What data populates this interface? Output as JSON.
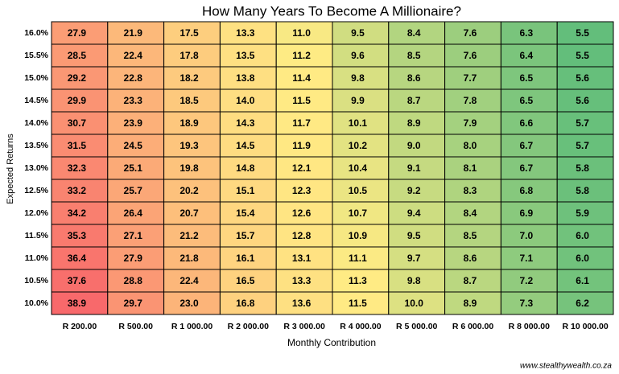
{
  "chart_data": {
    "type": "heatmap",
    "title": "How Many Years To Become A Millionaire?",
    "x_label": "Monthly Contribution",
    "y_label": "Expected Returns",
    "source": "www.stealthywealth.co.za",
    "color_scale": {
      "min": "#63be7b",
      "mid": "#ffeb84",
      "max": "#f8696b"
    },
    "rows": [
      "16.0%",
      "15.5%",
      "15.0%",
      "14.5%",
      "14.0%",
      "13.5%",
      "13.0%",
      "12.5%",
      "12.0%",
      "11.5%",
      "11.0%",
      "10.5%",
      "10.0%"
    ],
    "columns": [
      "R 200.00",
      "R 500.00",
      "R 1 000.00",
      "R 2 000.00",
      "R 3 000.00",
      "R 4 000.00",
      "R 5 000.00",
      "R 6 000.00",
      "R 8 000.00",
      "R 10 000.00"
    ],
    "values": [
      [
        27.9,
        21.9,
        17.5,
        13.3,
        11.0,
        9.5,
        8.4,
        7.6,
        6.3,
        5.5
      ],
      [
        28.5,
        22.4,
        17.8,
        13.5,
        11.2,
        9.6,
        8.5,
        7.6,
        6.4,
        5.5
      ],
      [
        29.2,
        22.8,
        18.2,
        13.8,
        11.4,
        9.8,
        8.6,
        7.7,
        6.5,
        5.6
      ],
      [
        29.9,
        23.3,
        18.5,
        14.0,
        11.5,
        9.9,
        8.7,
        7.8,
        6.5,
        5.6
      ],
      [
        30.7,
        23.9,
        18.9,
        14.3,
        11.7,
        10.1,
        8.9,
        7.9,
        6.6,
        5.7
      ],
      [
        31.5,
        24.5,
        19.3,
        14.5,
        11.9,
        10.2,
        9.0,
        8.0,
        6.7,
        5.7
      ],
      [
        32.3,
        25.1,
        19.8,
        14.8,
        12.1,
        10.4,
        9.1,
        8.1,
        6.7,
        5.8
      ],
      [
        33.2,
        25.7,
        20.2,
        15.1,
        12.3,
        10.5,
        9.2,
        8.3,
        6.8,
        5.8
      ],
      [
        34.2,
        26.4,
        20.7,
        15.4,
        12.6,
        10.7,
        9.4,
        8.4,
        6.9,
        5.9
      ],
      [
        35.3,
        27.1,
        21.2,
        15.7,
        12.8,
        10.9,
        9.5,
        8.5,
        7.0,
        6.0
      ],
      [
        36.4,
        27.9,
        21.8,
        16.1,
        13.1,
        11.1,
        9.7,
        8.6,
        7.1,
        6.0
      ],
      [
        37.6,
        28.8,
        22.4,
        16.5,
        13.3,
        11.3,
        9.8,
        8.7,
        7.2,
        6.1
      ],
      [
        38.9,
        29.7,
        23.0,
        16.8,
        13.6,
        11.5,
        10.0,
        8.9,
        7.3,
        6.2
      ]
    ],
    "value_labels": [
      [
        "27.9",
        "21.9",
        "17.5",
        "13.3",
        "11.0",
        "9.5",
        "8.4",
        "7.6",
        "6.3",
        "5.5"
      ],
      [
        "28.5",
        "22.4",
        "17.8",
        "13.5",
        "11.2",
        "9.6",
        "8.5",
        "7.6",
        "6.4",
        "5.5"
      ],
      [
        "29.2",
        "22.8",
        "18.2",
        "13.8",
        "11.4",
        "9.8",
        "8.6",
        "7.7",
        "6.5",
        "5.6"
      ],
      [
        "29.9",
        "23.3",
        "18.5",
        "14.0",
        "11.5",
        "9.9",
        "8.7",
        "7.8",
        "6.5",
        "5.6"
      ],
      [
        "30.7",
        "23.9",
        "18.9",
        "14.3",
        "11.7",
        "10.1",
        "8.9",
        "7.9",
        "6.6",
        "5.7"
      ],
      [
        "31.5",
        "24.5",
        "19.3",
        "14.5",
        "11.9",
        "10.2",
        "9.0",
        "8.0",
        "6.7",
        "5.7"
      ],
      [
        "32.3",
        "25.1",
        "19.8",
        "14.8",
        "12.1",
        "10.4",
        "9.1",
        "8.1",
        "6.7",
        "5.8"
      ],
      [
        "33.2",
        "25.7",
        "20.2",
        "15.1",
        "12.3",
        "10.5",
        "9.2",
        "8.3",
        "6.8",
        "5.8"
      ],
      [
        "34.2",
        "26.4",
        "20.7",
        "15.4",
        "12.6",
        "10.7",
        "9.4",
        "8.4",
        "6.9",
        "5.9"
      ],
      [
        "35.3",
        "27.1",
        "21.2",
        "15.7",
        "12.8",
        "10.9",
        "9.5",
        "8.5",
        "7.0",
        "6.0"
      ],
      [
        "36.4",
        "27.9",
        "21.8",
        "16.1",
        "13.1",
        "11.1",
        "9.7",
        "8.6",
        "7.1",
        "6.0"
      ],
      [
        "37.6",
        "28.8",
        "22.4",
        "16.5",
        "13.3",
        "11.3",
        "9.8",
        "8.7",
        "7.2",
        "6.1"
      ],
      [
        "38.9",
        "29.7",
        "23.0",
        "16.8",
        "13.6",
        "11.5",
        "10.0",
        "8.9",
        "7.3",
        "6.2"
      ]
    ]
  }
}
